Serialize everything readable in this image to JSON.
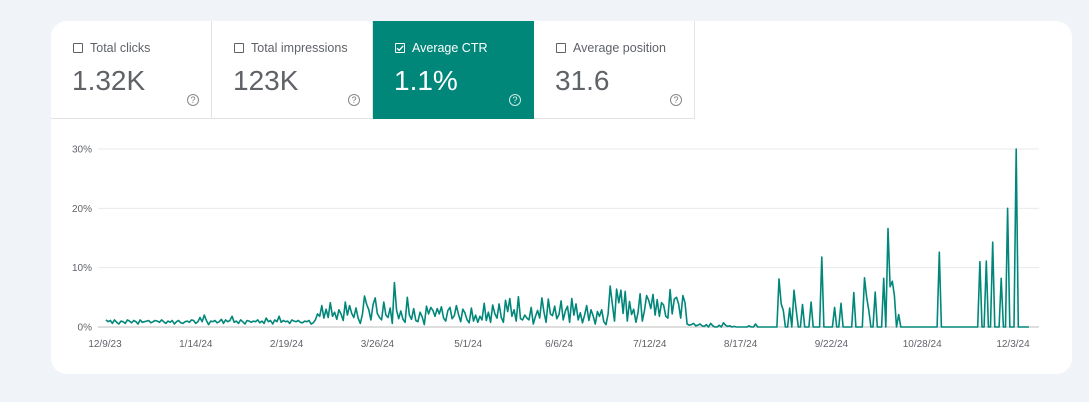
{
  "metrics": [
    {
      "label": "Total clicks",
      "value": "1.32K",
      "checked": false
    },
    {
      "label": "Total impressions",
      "value": "123K",
      "checked": false
    },
    {
      "label": "Average CTR",
      "value": "1.1%",
      "checked": true
    },
    {
      "label": "Average position",
      "value": "31.6",
      "checked": false
    }
  ],
  "help_glyph": "?",
  "colors": {
    "accent": "#01877a",
    "line": "#01877a",
    "grid": "#e8eaed"
  },
  "chart_data": {
    "type": "line",
    "title": "",
    "xlabel": "",
    "ylabel": "",
    "ylim": [
      0,
      30
    ],
    "x_tick_labels": [
      "12/9/23",
      "1/14/24",
      "2/19/24",
      "3/26/24",
      "5/1/24",
      "6/6/24",
      "7/12/24",
      "8/17/24",
      "9/22/24",
      "10/28/24",
      "12/3/24"
    ],
    "y_tick_values": [
      0,
      10,
      20,
      30
    ],
    "y_tick_labels": [
      "0%",
      "10%",
      "20%",
      "30%"
    ],
    "grid": true,
    "series": [
      {
        "x_start": "12/9/23",
        "x_end": "12/10/24",
        "values": [
          1.2,
          0.9,
          1.1,
          0.6,
          1.2,
          0.8,
          0.5,
          1.0,
          0.9,
          0.6,
          1.2,
          1.0,
          0.7,
          1.1,
          0.9,
          0.5,
          1.2,
          0.8,
          0.9,
          1.0,
          1.1,
          0.7,
          0.9,
          1.1,
          1.0,
          0.8,
          1.2,
          0.9,
          0.6,
          1.0,
          0.8,
          1.1,
          0.5,
          0.9,
          1.1,
          0.7,
          0.6,
          0.9,
          1.0,
          0.8,
          1.2,
          1.1,
          0.6,
          0.9,
          1.6,
          0.9,
          2.0,
          1.1,
          0.4,
          1.0,
          0.9,
          1.1,
          0.7,
          0.9,
          1.3,
          0.6,
          1.2,
          0.9,
          1.1,
          1.8,
          0.8,
          1.0,
          0.6,
          1.2,
          0.9,
          0.5,
          1.1,
          1.0,
          0.8,
          1.0,
          0.9,
          1.2,
          0.7,
          1.0,
          0.6,
          1.5,
          0.9,
          1.1,
          0.5,
          1.2,
          0.9,
          1.8,
          0.8,
          1.1,
          0.9,
          1.0,
          0.6,
          1.2,
          1.0,
          0.9,
          1.1,
          0.8,
          0.7,
          1.0,
          0.9,
          1.1,
          0.5,
          0.7,
          1.2,
          2.2,
          1.8,
          3.6,
          1.5,
          3.0,
          1.6,
          4.1,
          1.8,
          2.5,
          1.3,
          2.9,
          2.2,
          1.1,
          4.2,
          2.0,
          3.6,
          2.3,
          1.6,
          3.2,
          1.5,
          0.6,
          2.1,
          5.2,
          3.8,
          2.9,
          1.2,
          3.8,
          4.9,
          2.3,
          1.6,
          1.2,
          4.2,
          2.0,
          1.6,
          3.2,
          0.6,
          7.5,
          2.8,
          1.4,
          2.7,
          1.3,
          0.8,
          5.0,
          2.0,
          1.3,
          3.1,
          1.1,
          0.9,
          2.5,
          1.7,
          0.4,
          3.5,
          2.2,
          3.3,
          2.8,
          1.8,
          3.1,
          2.2,
          3.4,
          1.5,
          1.0,
          2.8,
          3.3,
          1.4,
          1.9,
          3.6,
          2.1,
          0.9,
          3.0,
          2.4,
          1.2,
          0.7,
          3.2,
          1.0,
          2.0,
          0.8,
          1.8,
          1.2,
          4.0,
          1.1,
          2.5,
          0.8,
          3.7,
          2.2,
          1.5,
          3.9,
          1.6,
          0.8,
          4.5,
          2.6,
          4.8,
          1.8,
          2.9,
          1.0,
          5.1,
          1.4,
          1.2,
          2.0,
          1.5,
          1.2,
          3.3,
          0.5,
          1.8,
          2.8,
          1.5,
          4.9,
          2.5,
          0.8,
          4.7,
          2.2,
          1.9,
          3.5,
          1.4,
          2.1,
          4.4,
          1.2,
          2.7,
          3.5,
          0.8,
          4.8,
          2.0,
          3.9,
          1.2,
          2.4,
          0.7,
          2.0,
          3.6,
          1.1,
          2.9,
          1.9,
          0.5,
          2.6,
          1.8,
          2.9,
          0.9,
          0.4,
          2.2,
          6.9,
          3.8,
          1.0,
          6.4,
          4.1,
          6.2,
          2.3,
          6.0,
          1.0,
          4.3,
          2.1,
          3.0,
          0.8,
          2.4,
          5.6,
          1.0,
          2.7,
          5.3,
          4.5,
          3.1,
          5.5,
          2.0,
          4.6,
          1.8,
          4.1,
          3.7,
          1.8,
          1.5,
          6.3,
          2.2,
          4.7,
          5.0,
          3.9,
          1.5,
          5.3,
          4.1,
          0.5,
          0.3,
          0.4,
          0.6,
          0.2,
          0.3,
          0.5,
          0.2,
          0.1,
          0.4,
          0.0,
          0.6,
          0.2,
          0.0,
          0.0,
          0.3,
          0.0,
          0.7,
          0.3,
          0.1,
          0.2,
          0.0,
          0.1,
          0.0,
          0.0,
          0.0,
          0.0,
          0.0,
          0.0,
          0.2,
          0.0,
          0.0,
          0.5,
          0.0,
          0.0,
          0.0,
          0.0,
          0.0,
          0.0,
          0.0,
          0.0,
          0.0,
          0.0,
          8.1,
          3.9,
          2.8,
          0.0,
          0.0,
          3.2,
          0.0,
          6.2,
          3.0,
          0.0,
          0.0,
          3.8,
          0.0,
          0.0,
          0.0,
          4.2,
          0.0,
          0.0,
          0.0,
          0.0,
          11.8,
          0.0,
          0.0,
          0.0,
          0.0,
          0.0,
          3.3,
          0.0,
          0.0,
          4.0,
          0.0,
          0.0,
          0.0,
          0.0,
          0.0,
          5.8,
          0.0,
          0.0,
          0.0,
          0.0,
          8.3,
          5.1,
          2.8,
          0.0,
          0.0,
          5.9,
          0.0,
          0.0,
          0.0,
          8.2,
          0.0,
          16.6,
          6.8,
          7.7,
          5.3,
          0.0,
          2.1,
          0.0,
          0.0,
          0.0,
          0.0,
          0.0,
          0.0,
          0.0,
          0.0,
          0.0,
          0.0,
          0.0,
          0.0,
          0.0,
          0.0,
          0.0,
          0.0,
          0.0,
          0.0,
          12.6,
          0.0,
          0.0,
          0.0,
          0.0,
          0.0,
          0.0,
          0.0,
          0.0,
          0.0,
          0.0,
          0.0,
          0.0,
          0.0,
          0.0,
          0.0,
          0.0,
          0.0,
          0.0,
          11.0,
          0.0,
          0.0,
          11.1,
          0.0,
          0.0,
          14.3,
          0.0,
          0.0,
          0.0,
          8.2,
          0.0,
          0.0,
          20.0,
          0.0,
          0.0,
          0.0,
          30.0,
          0.0,
          0.0,
          0.0,
          0.0,
          0.0,
          0.0
        ]
      }
    ]
  }
}
